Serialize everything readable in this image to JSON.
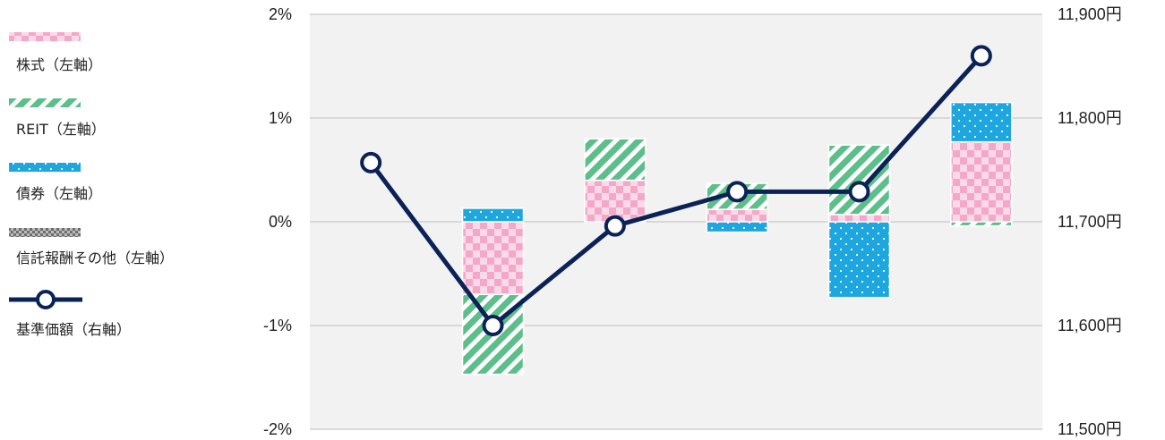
{
  "chart_data": {
    "type": "bar",
    "categories": [
      "",
      "",
      "",
      "",
      "",
      ""
    ],
    "series": [
      {
        "name": "株式（左軸）",
        "kind": "bar",
        "axis": "left",
        "values": [
          0,
          -0.7,
          0.4,
          0.12,
          0.07,
          0.77
        ]
      },
      {
        "name": "REIT（左軸）",
        "kind": "bar",
        "axis": "left",
        "values": [
          0,
          -0.77,
          0.4,
          0.25,
          0.67,
          -0.04
        ]
      },
      {
        "name": "債券（左軸）",
        "kind": "bar",
        "axis": "left",
        "values": [
          0,
          0.13,
          0,
          -0.1,
          -0.73,
          0.38
        ]
      },
      {
        "name": "信託報酬その他（左軸）",
        "kind": "bar",
        "axis": "left",
        "values": [
          0,
          0,
          0,
          0,
          0,
          0
        ]
      },
      {
        "name": "基準価額（右軸）",
        "kind": "line",
        "axis": "right",
        "values": [
          11757,
          11600,
          11696,
          11729,
          11729,
          11860
        ]
      }
    ],
    "y_left": {
      "min": -2,
      "max": 2,
      "ticks": [
        2,
        1,
        0,
        -1,
        -2
      ],
      "tick_labels": [
        "2%",
        "1%",
        "0%",
        "-1%",
        "-2%"
      ]
    },
    "y_right": {
      "min": 11500,
      "max": 11900,
      "ticks": [
        11900,
        11800,
        11700,
        11600,
        11500
      ],
      "tick_labels": [
        "11,900円",
        "11,800円",
        "11,700円",
        "11,600円",
        "11,500円"
      ]
    },
    "grid": true,
    "legend_position": "left",
    "colors": {
      "stock": "#f3a8c8",
      "reit": "#5cbf8a",
      "bond": "#1ea6df",
      "fees": "#8c8c8c",
      "line": "#0b2257",
      "plot_bg": "#f2f2f2",
      "grid": "#c8c8c8"
    }
  }
}
